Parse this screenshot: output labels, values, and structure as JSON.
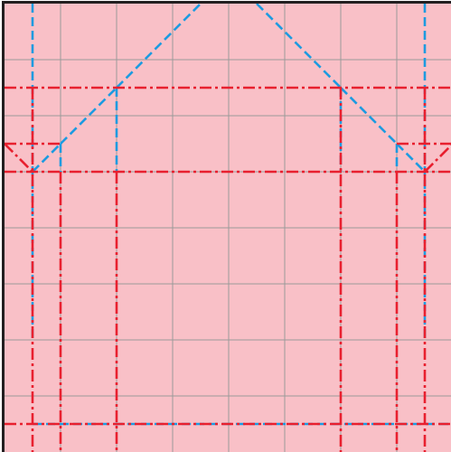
{
  "diagram": {
    "type": "origami-crease-pattern",
    "colors": {
      "paper": "#f9c0c7",
      "grid": "#9a9a9a",
      "border": "#231f20",
      "valley": "#1d9be0",
      "mountain": "#e8202f"
    },
    "grid_divisions": 8,
    "line_styles": {
      "valley": "dashed",
      "mountain": "dash-dot"
    },
    "valley_folds": [
      [
        [
          0.5,
          0
        ],
        [
          0.5,
          6
        ]
      ],
      [
        [
          7.5,
          0
        ],
        [
          7.5,
          6
        ]
      ],
      [
        [
          0.5,
          7.5
        ],
        [
          12.5,
          7.5
        ]
      ],
      [
        [
          0.5,
          3
        ],
        [
          1,
          2.5
        ]
      ],
      [
        [
          1,
          2.5
        ],
        [
          1,
          3
        ]
      ],
      [
        [
          1,
          2.5
        ],
        [
          2,
          1.5
        ]
      ],
      [
        [
          2,
          1.5
        ],
        [
          2,
          3
        ]
      ],
      [
        [
          2,
          1.5
        ],
        [
          3.5,
          0
        ]
      ],
      [
        [
          4.5,
          0
        ],
        [
          6,
          1.5
        ]
      ],
      [
        [
          6,
          1.5
        ],
        [
          6,
          3
        ]
      ],
      [
        [
          6,
          1.5
        ],
        [
          7,
          2.5
        ]
      ],
      [
        [
          7,
          2.5
        ],
        [
          7,
          3
        ]
      ],
      [
        [
          7,
          2.5
        ],
        [
          7.5,
          3
        ]
      ]
    ],
    "mountain_folds": [
      [
        [
          0,
          1.5
        ],
        [
          8,
          1.5
        ]
      ],
      [
        [
          0,
          2.5
        ],
        [
          1,
          2.5
        ]
      ],
      [
        [
          7,
          2.5
        ],
        [
          8,
          2.5
        ]
      ],
      [
        [
          0,
          3
        ],
        [
          8,
          3
        ]
      ],
      [
        [
          0,
          7.5
        ],
        [
          8,
          7.5
        ]
      ],
      [
        [
          0.5,
          1.5
        ],
        [
          0.5,
          8
        ]
      ],
      [
        [
          1,
          3
        ],
        [
          1,
          8
        ]
      ],
      [
        [
          2,
          3
        ],
        [
          2,
          8
        ]
      ],
      [
        [
          6,
          1.5
        ],
        [
          6,
          8
        ]
      ],
      [
        [
          7,
          3
        ],
        [
          7,
          8
        ]
      ],
      [
        [
          7.5,
          1.5
        ],
        [
          7.5,
          8
        ]
      ],
      [
        [
          0,
          2.5
        ],
        [
          0.5,
          3
        ]
      ],
      [
        [
          7.5,
          3
        ],
        [
          8,
          2.5
        ]
      ]
    ]
  }
}
